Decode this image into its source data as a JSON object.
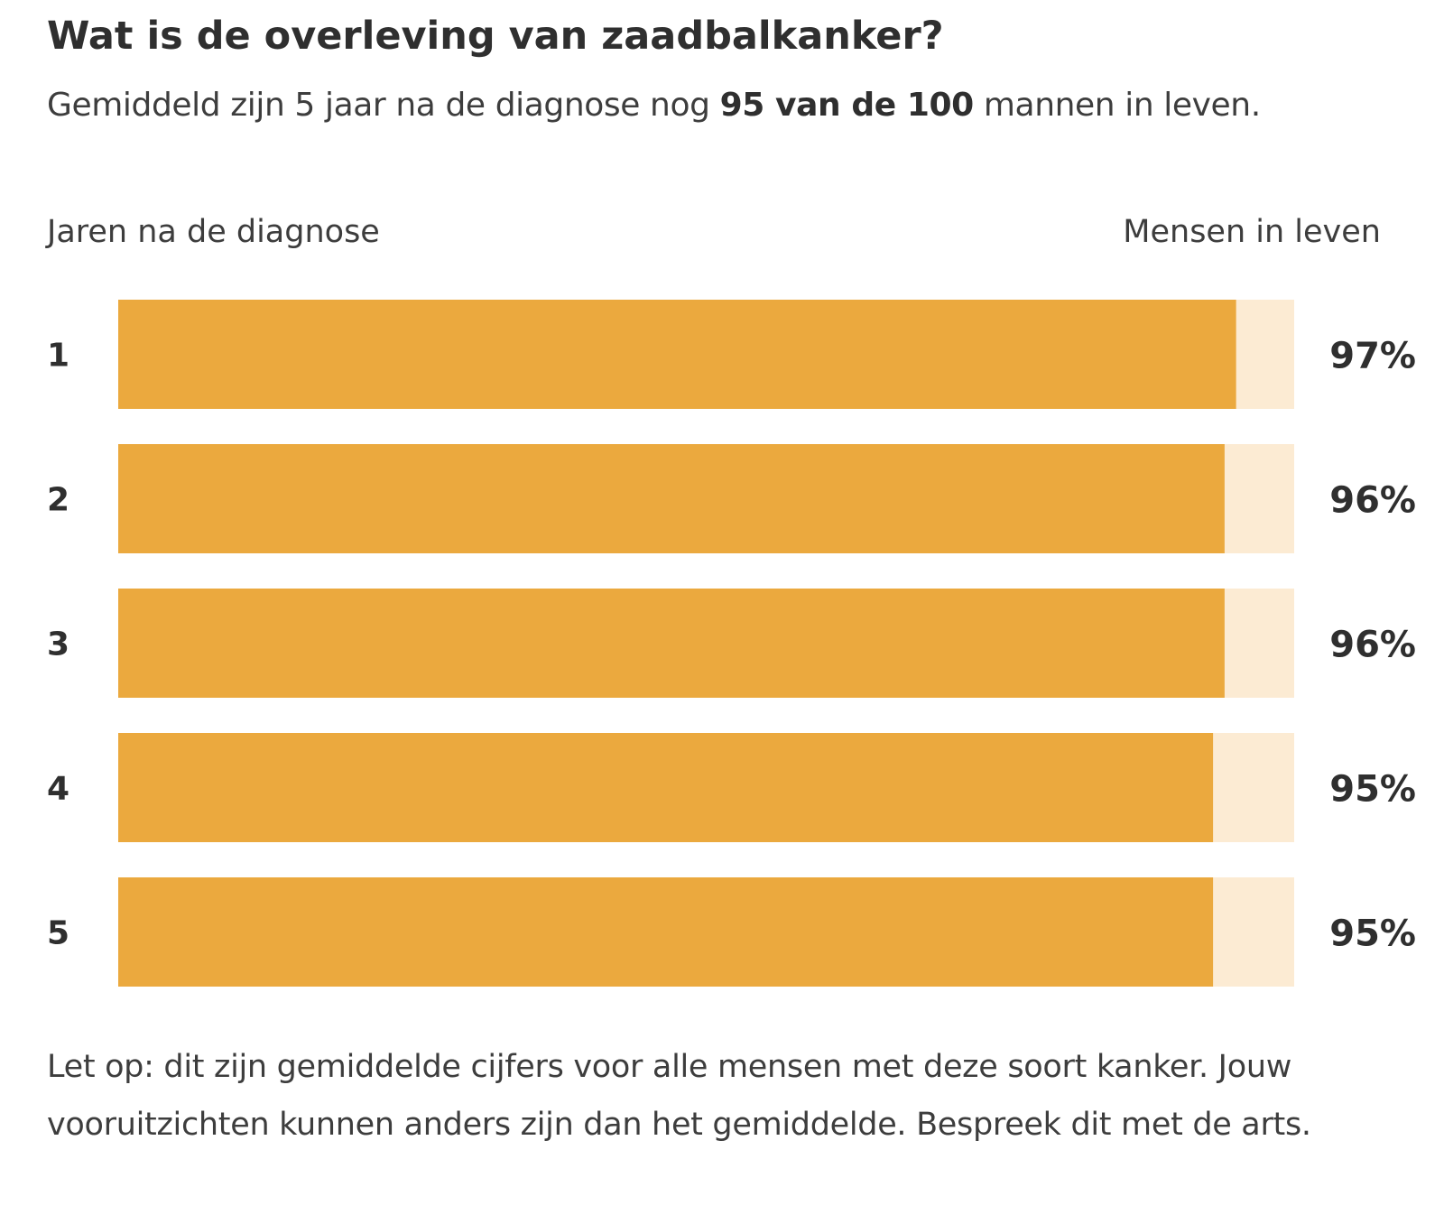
{
  "header": {
    "title": "Wat is de overleving van zaadbalkanker?",
    "subtitle_before": "Gemiddeld zijn 5 jaar na de diagnose nog ",
    "subtitle_bold": "95 van de 100",
    "subtitle_after": " mannen in leven."
  },
  "columns": {
    "left": "Jaren na de diagnose",
    "right": "Mensen in leven"
  },
  "chart_data": {
    "type": "bar",
    "orientation": "horizontal",
    "categories": [
      "1",
      "2",
      "3",
      "4",
      "5"
    ],
    "values": [
      97,
      96,
      96,
      95,
      95
    ],
    "value_labels": [
      "97%",
      "96%",
      "96%",
      "95%",
      "95%"
    ],
    "xlim": [
      0,
      100
    ],
    "colors": {
      "bar": "#EBA93E",
      "track": "#FCEBD3"
    }
  },
  "footnote": "Let op: dit zijn gemiddelde cijfers voor alle mensen met deze soort kanker. Jouw vooruitzichten kunnen anders zijn dan het gemiddelde. Bespreek dit met de arts."
}
